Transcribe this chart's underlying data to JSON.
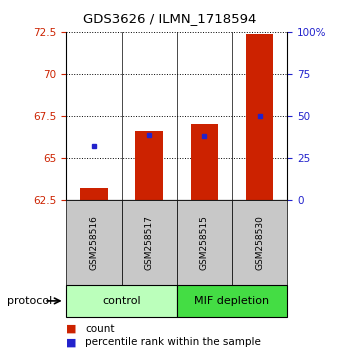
{
  "title": "GDS3626 / ILMN_1718594",
  "samples": [
    "GSM258516",
    "GSM258517",
    "GSM258515",
    "GSM258530"
  ],
  "bar_bottoms": [
    62.5,
    62.5,
    62.5,
    62.5
  ],
  "bar_tops": [
    63.2,
    66.6,
    67.0,
    72.4
  ],
  "blue_y": [
    65.7,
    66.35,
    66.3,
    67.5
  ],
  "left_ylim": [
    62.5,
    72.5
  ],
  "left_yticks": [
    62.5,
    65.0,
    67.5,
    70.0,
    72.5
  ],
  "left_yticklabels": [
    "62.5",
    "65",
    "67.5",
    "70",
    "72.5"
  ],
  "right_ylim": [
    0,
    100
  ],
  "right_yticks": [
    0,
    25,
    50,
    75,
    100
  ],
  "right_yticklabels": [
    "0",
    "25",
    "50",
    "75",
    "100%"
  ],
  "bar_color": "#cc2200",
  "blue_color": "#2222cc",
  "groups": [
    {
      "label": "control",
      "start": 0,
      "end": 2,
      "color": "#bbffbb"
    },
    {
      "label": "MIF depletion",
      "start": 2,
      "end": 4,
      "color": "#44dd44"
    }
  ],
  "protocol_label": "protocol",
  "bar_width": 0.5
}
